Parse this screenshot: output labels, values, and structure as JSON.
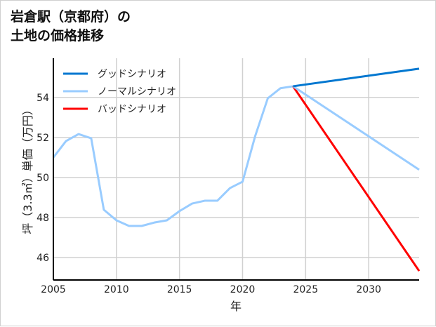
{
  "chart_data": {
    "type": "line",
    "title_line1": "岩倉駅（京都府）の",
    "title_line2": "土地の価格推移",
    "xlabel": "年",
    "ylabel": "坪（3.3㎡）単価（万円）",
    "xlim": [
      2005,
      2034
    ],
    "ylim": [
      44.88,
      55.96
    ],
    "xticks": [
      2005,
      2010,
      2015,
      2020,
      2025,
      2030
    ],
    "yticks": [
      46,
      48,
      50,
      52,
      54
    ],
    "grid": true,
    "legend_position": "top-left",
    "history": {
      "x": [
        2005,
        2006,
        2007,
        2008,
        2009,
        2010,
        2011,
        2012,
        2013,
        2014,
        2015,
        2016,
        2017,
        2018,
        2019,
        2020,
        2021,
        2022,
        2023,
        2024
      ],
      "y": [
        51.0,
        51.82,
        52.17,
        51.96,
        48.39,
        47.86,
        47.58,
        47.58,
        47.75,
        47.86,
        48.32,
        48.7,
        48.84,
        48.84,
        49.47,
        49.79,
        52.07,
        53.96,
        54.46,
        54.56
      ]
    },
    "series": [
      {
        "name": "グッドシナリオ",
        "color": "#0077d0",
        "x": [
          2024,
          2034
        ],
        "y": [
          54.56,
          55.44
        ]
      },
      {
        "name": "ノーマルシナリオ",
        "color": "#99ccff",
        "x": [
          2024,
          2034
        ],
        "y": [
          54.56,
          50.39
        ]
      },
      {
        "name": "バッドシナリオ",
        "color": "#ff0000",
        "x": [
          2024,
          2034
        ],
        "y": [
          54.56,
          45.33
        ]
      }
    ]
  }
}
